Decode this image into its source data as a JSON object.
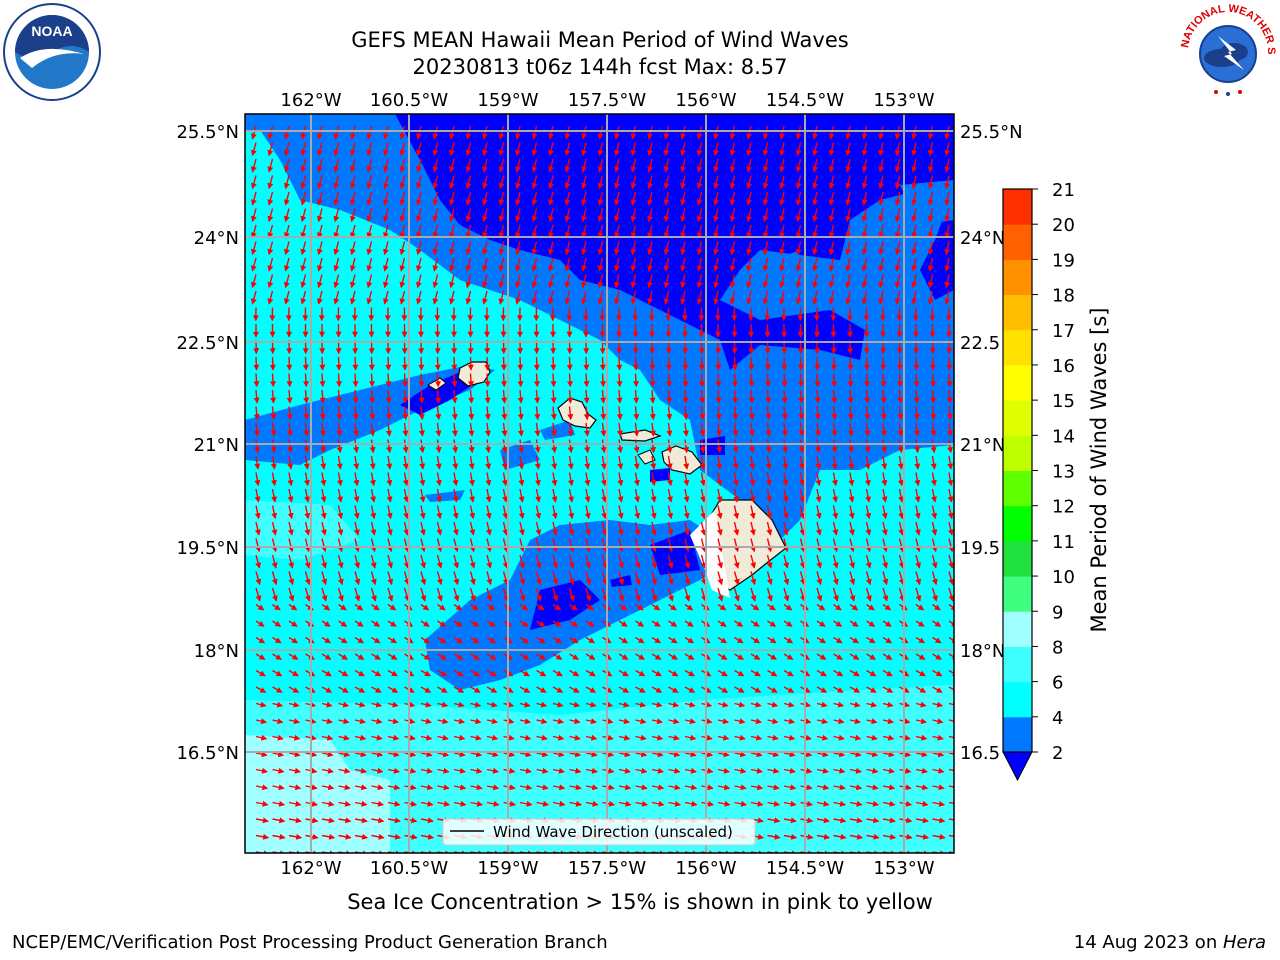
{
  "header": {
    "title_line1": "GEFS MEAN Hawaii Mean Period of Wind Waves",
    "title_line2": "20230813 t06z 144h fcst   Max: 8.57"
  },
  "logos": {
    "left": "noaa-logo",
    "left_text": "NOAA",
    "right": "national-weather-service-logo",
    "right_text": "NATIONAL WEATHER SERVICE"
  },
  "map": {
    "lon_labels": [
      "162°W",
      "160.5°W",
      "159°W",
      "157.5°W",
      "156°W",
      "154.5°W",
      "153°W"
    ],
    "lat_labels": [
      "25.5°N",
      "24°N",
      "22.5°N",
      "21°N",
      "19.5°N",
      "18°N",
      "16.5°N"
    ],
    "lat_labels_right": [
      "25.5°N",
      "24°N",
      "22.5",
      "21°N",
      "19.5",
      "18°N",
      "16.5"
    ],
    "arrow_color": "#ff0000",
    "legend_label": "Wind Wave Direction (unscaled)"
  },
  "colorbar": {
    "label": "Mean Period of Wind Waves [s]",
    "ticks": [
      "2",
      "4",
      "6",
      "8",
      "9",
      "10",
      "11",
      "12",
      "13",
      "14",
      "15",
      "16",
      "17",
      "18",
      "19",
      "20",
      "21"
    ],
    "colors": [
      "#0078ff",
      "#00ffff",
      "#40ffff",
      "#a0ffff",
      "#40ff80",
      "#20e040",
      "#00ff00",
      "#60ff00",
      "#c0ff00",
      "#e0ff00",
      "#ffff00",
      "#ffe000",
      "#ffbf00",
      "#ff9000",
      "#ff6000",
      "#ff3000",
      "#ff0000"
    ],
    "under_color": "#0000ff"
  },
  "captions": {
    "sea_ice": "Sea Ice Concentration > 15% is shown in pink to yellow"
  },
  "footer": {
    "left": "NCEP/EMC/Verification Post Processing Product Generation Branch",
    "right_prefix": "14 Aug 2023 on ",
    "right_host": "Hera"
  }
}
